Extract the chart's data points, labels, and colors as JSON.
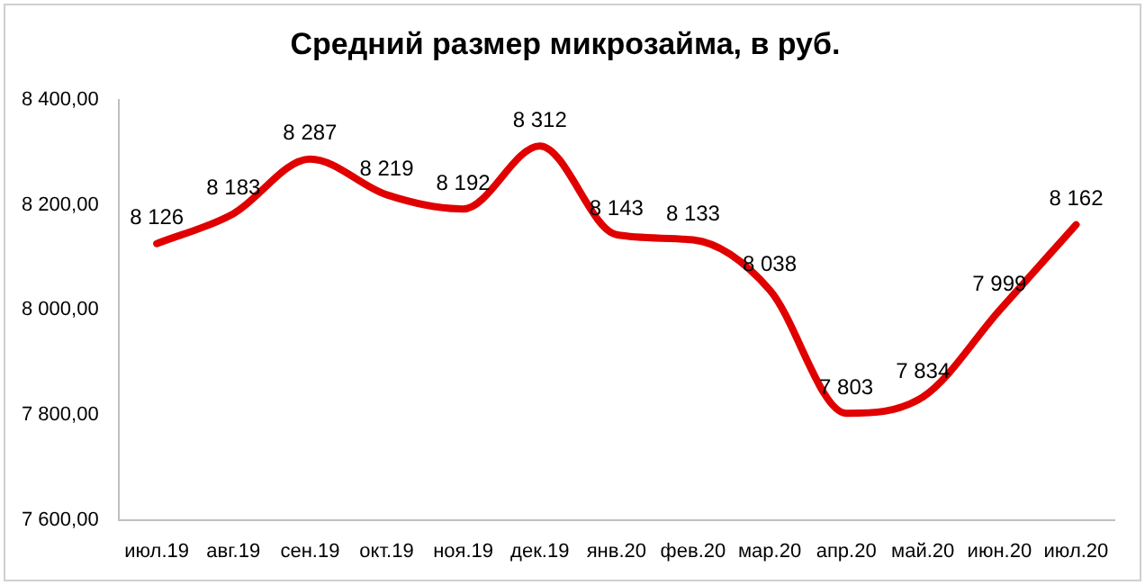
{
  "chart_data": {
    "type": "line",
    "title": "Средний размер микрозайма, в руб.",
    "categories": [
      "июл.19",
      "авг.19",
      "сен.19",
      "окт.19",
      "ноя.19",
      "дек.19",
      "янв.20",
      "фев.20",
      "мар.20",
      "апр.20",
      "май.20",
      "июн.20",
      "июл.20"
    ],
    "series": [
      {
        "color": "#e00000",
        "values": [
          8126,
          8183,
          8287,
          8219,
          8192,
          8312,
          8143,
          8133,
          8038,
          7803,
          7834,
          7999,
          8162
        ],
        "value_labels": [
          "8 126",
          "8 183",
          "8 287",
          "8 219",
          "8 192",
          "8 312",
          "8 143",
          "8 133",
          "8 038",
          "7 803",
          "7 834",
          "7 999",
          "8 162"
        ]
      }
    ],
    "ylim": [
      7600,
      8400
    ],
    "yticks": [
      {
        "value": 7600,
        "label": "7 600,00"
      },
      {
        "value": 7800,
        "label": "7 800,00"
      },
      {
        "value": 8000,
        "label": "8 000,00"
      },
      {
        "value": 8200,
        "label": "8 200,00"
      },
      {
        "value": 8400,
        "label": "8 400,00"
      }
    ],
    "grid": false,
    "legend": false,
    "marker": "none",
    "line_style": "solid"
  }
}
